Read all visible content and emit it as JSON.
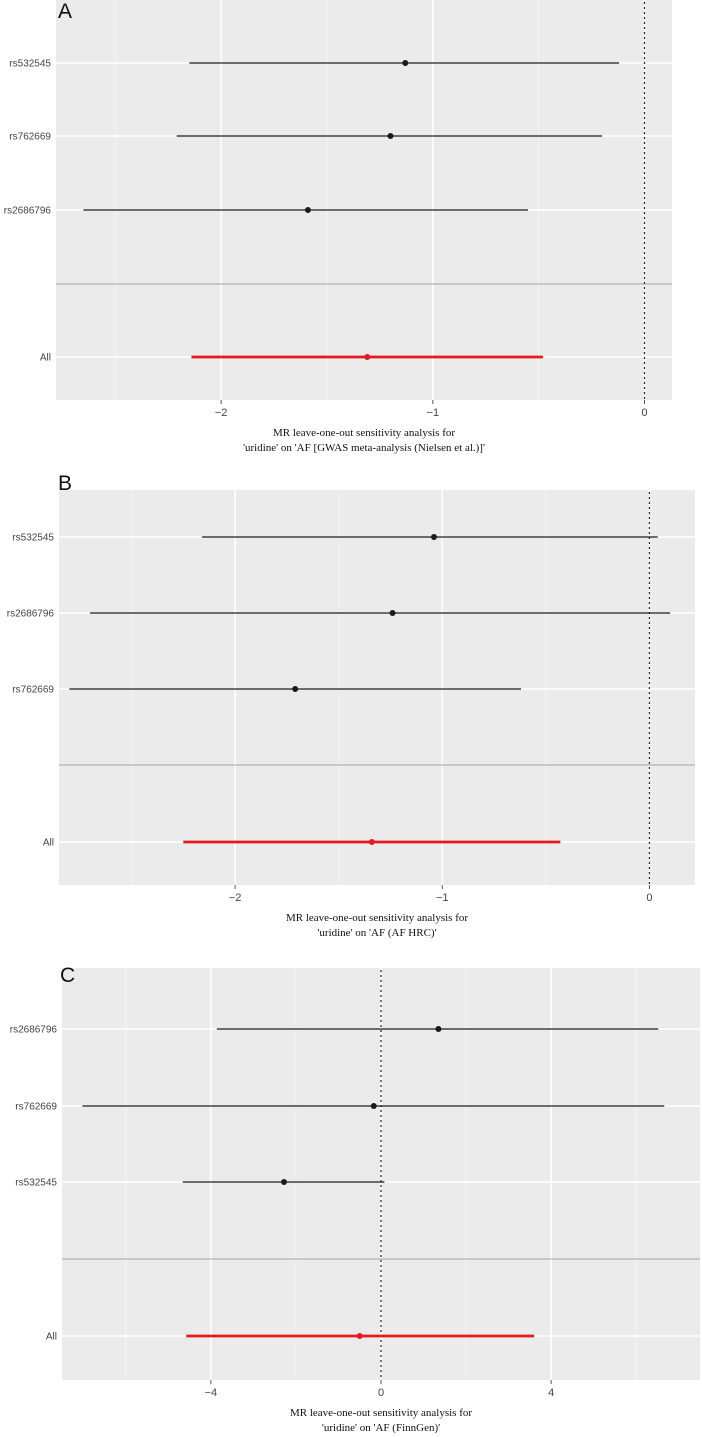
{
  "chart_data": [
    {
      "type": "forest",
      "panel": "A",
      "xlabel_lines": [
        "MR leave-one-out sensitivity analysis for",
        "'uridine' on 'AF [GWAS meta-analysis (Nielsen et al.)]'"
      ],
      "xlim": [
        -2.78,
        0.13
      ],
      "xticks": [
        -2,
        -1,
        0
      ],
      "xtick_labels": [
        "−2",
        "−1",
        "0"
      ],
      "reference_line": 0,
      "rows": [
        {
          "label": "rs532545",
          "estimate": -1.13,
          "lower": -2.15,
          "upper": -0.12,
          "overall": false
        },
        {
          "label": "rs762669",
          "estimate": -1.2,
          "lower": -2.21,
          "upper": -0.2,
          "overall": false
        },
        {
          "label": "rs2686796",
          "estimate": -1.59,
          "lower": -2.65,
          "upper": -0.55,
          "overall": false
        },
        {
          "label": "All",
          "estimate": -1.31,
          "lower": -2.14,
          "upper": -0.48,
          "overall": true
        }
      ]
    },
    {
      "type": "forest",
      "panel": "B",
      "xlabel_lines": [
        "MR leave-one-out sensitivity analysis for",
        "'uridine' on 'AF (AF HRC)'"
      ],
      "xlim": [
        -2.85,
        0.22
      ],
      "xticks": [
        -2,
        -1,
        0
      ],
      "xtick_labels": [
        "−2",
        "−1",
        "0"
      ],
      "reference_line": 0,
      "rows": [
        {
          "label": "rs532545",
          "estimate": -1.04,
          "lower": -2.16,
          "upper": 0.04,
          "overall": false
        },
        {
          "label": "rs2686796",
          "estimate": -1.24,
          "lower": -2.7,
          "upper": 0.1,
          "overall": false
        },
        {
          "label": "rs762669",
          "estimate": -1.71,
          "lower": -2.8,
          "upper": -0.62,
          "overall": false
        },
        {
          "label": "All",
          "estimate": -1.34,
          "lower": -2.25,
          "upper": -0.43,
          "overall": true
        }
      ]
    },
    {
      "type": "forest",
      "panel": "C",
      "xlabel_lines": [
        "MR leave-one-out sensitivity analysis for",
        "'uridine' on 'AF (FinnGen)'"
      ],
      "xlim": [
        -7.5,
        7.5
      ],
      "xticks": [
        -4,
        0,
        4
      ],
      "xtick_labels": [
        "−4",
        "0",
        "4"
      ],
      "reference_line": 0,
      "rows": [
        {
          "label": "rs2686796",
          "estimate": 1.35,
          "lower": -3.86,
          "upper": 6.52,
          "overall": false
        },
        {
          "label": "rs762669",
          "estimate": -0.17,
          "lower": -7.02,
          "upper": 6.66,
          "overall": false
        },
        {
          "label": "rs532545",
          "estimate": -2.28,
          "lower": -4.66,
          "upper": 0.08,
          "overall": false
        },
        {
          "label": "All",
          "estimate": -0.5,
          "lower": -4.58,
          "upper": 3.6,
          "overall": true
        }
      ]
    }
  ],
  "colors": {
    "panel_bg": "#ebebeb",
    "grid_major": "#ffffff",
    "grid_minor": "#f4f4f4",
    "snp_line": "#1a1a1a",
    "overall_line": "#e41a1c",
    "separator": "#bdbdbd"
  }
}
